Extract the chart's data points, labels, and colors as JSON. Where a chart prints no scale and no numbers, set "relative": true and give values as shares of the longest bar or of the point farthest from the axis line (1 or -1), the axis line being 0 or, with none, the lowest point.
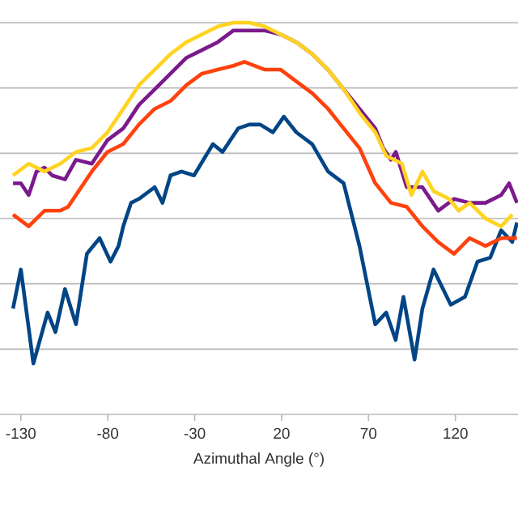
{
  "chart_data": {
    "type": "line",
    "relative": true,
    "xlabel": "Azimuthal Angle (°)",
    "xlim": [
      -142,
      156
    ],
    "xticks": [
      -130,
      -80,
      -30,
      20,
      70,
      120
    ],
    "grid": "y",
    "marker": "none",
    "line_style": "solid",
    "series": [
      {
        "color": "#004586",
        "x": [
          -134.5,
          -130,
          -122.8,
          -114.6,
          -110.1,
          -104.6,
          -98.3,
          -92,
          -84.7,
          -78.4,
          -73.8,
          -71.1,
          -66.6,
          -62.1,
          -53,
          -48.5,
          -43.9,
          -37.6,
          -30.4,
          -19.5,
          -14,
          -5,
          1.4,
          7.7,
          15,
          21.3,
          28.5,
          37.6,
          46.7,
          55.7,
          64.8,
          73.9,
          80.2,
          85.6,
          90.1,
          96.5,
          101,
          107.4,
          117.3,
          125.5,
          132.7,
          140,
          146.3,
          152.7,
          155.4
        ],
        "values": [
          0.27,
          0.37,
          0.13,
          0.26,
          0.21,
          0.32,
          0.23,
          0.41,
          0.45,
          0.39,
          0.43,
          0.48,
          0.54,
          0.55,
          0.58,
          0.54,
          0.61,
          0.62,
          0.61,
          0.69,
          0.67,
          0.73,
          0.74,
          0.74,
          0.72,
          0.76,
          0.72,
          0.69,
          0.62,
          0.59,
          0.43,
          0.23,
          0.26,
          0.19,
          0.3,
          0.14,
          0.27,
          0.37,
          0.28,
          0.3,
          0.39,
          0.4,
          0.47,
          0.44,
          0.49
        ]
      },
      {
        "color": "#ff420e",
        "x": [
          -134.5,
          -125.5,
          -116.4,
          -107.3,
          -102.8,
          -98.3,
          -89.2,
          -80.2,
          -71.1,
          -62.1,
          -53,
          -43.9,
          -34.9,
          -25.8,
          -16.8,
          -7.7,
          -1.4,
          10.4,
          19.5,
          28.5,
          37.6,
          46.7,
          55.7,
          64.8,
          73.9,
          82.9,
          92,
          101,
          110.1,
          119.2,
          128.2,
          137.3,
          146.3,
          155.4
        ],
        "values": [
          0.51,
          0.48,
          0.52,
          0.52,
          0.53,
          0.56,
          0.62,
          0.67,
          0.69,
          0.74,
          0.78,
          0.8,
          0.84,
          0.87,
          0.88,
          0.89,
          0.9,
          0.88,
          0.88,
          0.85,
          0.82,
          0.78,
          0.73,
          0.68,
          0.59,
          0.54,
          0.53,
          0.48,
          0.44,
          0.41,
          0.45,
          0.43,
          0.45,
          0.45
        ]
      },
      {
        "color": "#7b1a8c",
        "x": [
          -134.5,
          -130,
          -125.5,
          -121,
          -116.4,
          -112,
          -104.6,
          -98.3,
          -89.2,
          -80.2,
          -71.1,
          -62.1,
          -53,
          -43.9,
          -34.9,
          -25.8,
          -16.8,
          -7.7,
          1.4,
          10.4,
          19.5,
          28.5,
          37.6,
          46.7,
          55.7,
          64.8,
          73.9,
          78.4,
          82.9,
          85.7,
          92,
          101,
          110.1,
          119.2,
          128.2,
          137.3,
          146.3,
          150.9,
          155.4
        ],
        "values": [
          0.59,
          0.59,
          0.56,
          0.62,
          0.63,
          0.61,
          0.6,
          0.65,
          0.64,
          0.7,
          0.73,
          0.79,
          0.83,
          0.87,
          0.91,
          0.93,
          0.95,
          0.98,
          0.98,
          0.98,
          0.97,
          0.95,
          0.92,
          0.88,
          0.83,
          0.78,
          0.73,
          0.68,
          0.65,
          0.67,
          0.58,
          0.58,
          0.52,
          0.55,
          0.54,
          0.54,
          0.56,
          0.59,
          0.54
        ]
      },
      {
        "color": "#ffd320",
        "x": [
          -134.5,
          -125.5,
          -116.4,
          -107.3,
          -98.3,
          -89.2,
          -80.2,
          -71.1,
          -62.1,
          -53,
          -43.9,
          -34.9,
          -25.8,
          -16.8,
          -7.7,
          1.4,
          10.4,
          19.5,
          28.5,
          37.6,
          46.7,
          55.7,
          64.8,
          73.9,
          80.2,
          89.2,
          94.7,
          101,
          107.4,
          116.4,
          121.9,
          128.2,
          137.3,
          146.3,
          152.7
        ],
        "values": [
          0.61,
          0.64,
          0.62,
          0.64,
          0.67,
          0.68,
          0.72,
          0.78,
          0.84,
          0.88,
          0.92,
          0.95,
          0.97,
          0.99,
          1,
          1,
          0.99,
          0.97,
          0.95,
          0.92,
          0.88,
          0.83,
          0.77,
          0.72,
          0.66,
          0.64,
          0.56,
          0.62,
          0.57,
          0.55,
          0.52,
          0.54,
          0.5,
          0.48,
          0.51
        ]
      }
    ]
  }
}
